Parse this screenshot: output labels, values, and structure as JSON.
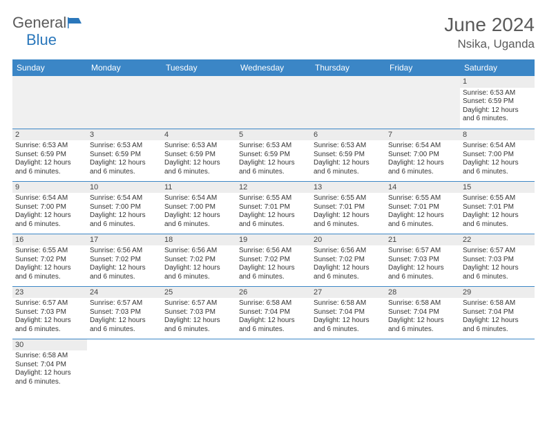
{
  "brand": {
    "part1": "General",
    "part2": "Blue",
    "text_color": "#5a5a5a",
    "accent_color": "#2a77bb"
  },
  "title": "June 2024",
  "location": "Nsika, Uganda",
  "header_bg": "#3b86c6",
  "header_fg": "#ffffff",
  "divider_color": "#3b86c6",
  "daynum_bg": "#ededed",
  "weekdays": [
    "Sunday",
    "Monday",
    "Tuesday",
    "Wednesday",
    "Thursday",
    "Friday",
    "Saturday"
  ],
  "days": {
    "1": {
      "sunrise": "6:53 AM",
      "sunset": "6:59 PM",
      "daylight": "12 hours and 6 minutes."
    },
    "2": {
      "sunrise": "6:53 AM",
      "sunset": "6:59 PM",
      "daylight": "12 hours and 6 minutes."
    },
    "3": {
      "sunrise": "6:53 AM",
      "sunset": "6:59 PM",
      "daylight": "12 hours and 6 minutes."
    },
    "4": {
      "sunrise": "6:53 AM",
      "sunset": "6:59 PM",
      "daylight": "12 hours and 6 minutes."
    },
    "5": {
      "sunrise": "6:53 AM",
      "sunset": "6:59 PM",
      "daylight": "12 hours and 6 minutes."
    },
    "6": {
      "sunrise": "6:53 AM",
      "sunset": "6:59 PM",
      "daylight": "12 hours and 6 minutes."
    },
    "7": {
      "sunrise": "6:54 AM",
      "sunset": "7:00 PM",
      "daylight": "12 hours and 6 minutes."
    },
    "8": {
      "sunrise": "6:54 AM",
      "sunset": "7:00 PM",
      "daylight": "12 hours and 6 minutes."
    },
    "9": {
      "sunrise": "6:54 AM",
      "sunset": "7:00 PM",
      "daylight": "12 hours and 6 minutes."
    },
    "10": {
      "sunrise": "6:54 AM",
      "sunset": "7:00 PM",
      "daylight": "12 hours and 6 minutes."
    },
    "11": {
      "sunrise": "6:54 AM",
      "sunset": "7:00 PM",
      "daylight": "12 hours and 6 minutes."
    },
    "12": {
      "sunrise": "6:55 AM",
      "sunset": "7:01 PM",
      "daylight": "12 hours and 6 minutes."
    },
    "13": {
      "sunrise": "6:55 AM",
      "sunset": "7:01 PM",
      "daylight": "12 hours and 6 minutes."
    },
    "14": {
      "sunrise": "6:55 AM",
      "sunset": "7:01 PM",
      "daylight": "12 hours and 6 minutes."
    },
    "15": {
      "sunrise": "6:55 AM",
      "sunset": "7:01 PM",
      "daylight": "12 hours and 6 minutes."
    },
    "16": {
      "sunrise": "6:55 AM",
      "sunset": "7:02 PM",
      "daylight": "12 hours and 6 minutes."
    },
    "17": {
      "sunrise": "6:56 AM",
      "sunset": "7:02 PM",
      "daylight": "12 hours and 6 minutes."
    },
    "18": {
      "sunrise": "6:56 AM",
      "sunset": "7:02 PM",
      "daylight": "12 hours and 6 minutes."
    },
    "19": {
      "sunrise": "6:56 AM",
      "sunset": "7:02 PM",
      "daylight": "12 hours and 6 minutes."
    },
    "20": {
      "sunrise": "6:56 AM",
      "sunset": "7:02 PM",
      "daylight": "12 hours and 6 minutes."
    },
    "21": {
      "sunrise": "6:57 AM",
      "sunset": "7:03 PM",
      "daylight": "12 hours and 6 minutes."
    },
    "22": {
      "sunrise": "6:57 AM",
      "sunset": "7:03 PM",
      "daylight": "12 hours and 6 minutes."
    },
    "23": {
      "sunrise": "6:57 AM",
      "sunset": "7:03 PM",
      "daylight": "12 hours and 6 minutes."
    },
    "24": {
      "sunrise": "6:57 AM",
      "sunset": "7:03 PM",
      "daylight": "12 hours and 6 minutes."
    },
    "25": {
      "sunrise": "6:57 AM",
      "sunset": "7:03 PM",
      "daylight": "12 hours and 6 minutes."
    },
    "26": {
      "sunrise": "6:58 AM",
      "sunset": "7:04 PM",
      "daylight": "12 hours and 6 minutes."
    },
    "27": {
      "sunrise": "6:58 AM",
      "sunset": "7:04 PM",
      "daylight": "12 hours and 6 minutes."
    },
    "28": {
      "sunrise": "6:58 AM",
      "sunset": "7:04 PM",
      "daylight": "12 hours and 6 minutes."
    },
    "29": {
      "sunrise": "6:58 AM",
      "sunset": "7:04 PM",
      "daylight": "12 hours and 6 minutes."
    },
    "30": {
      "sunrise": "6:58 AM",
      "sunset": "7:04 PM",
      "daylight": "12 hours and 6 minutes."
    }
  },
  "labels": {
    "sunrise": "Sunrise: ",
    "sunset": "Sunset: ",
    "daylight": "Daylight: "
  },
  "layout": {
    "first_day_column": 6,
    "days_in_month": 30,
    "columns": 7
  }
}
